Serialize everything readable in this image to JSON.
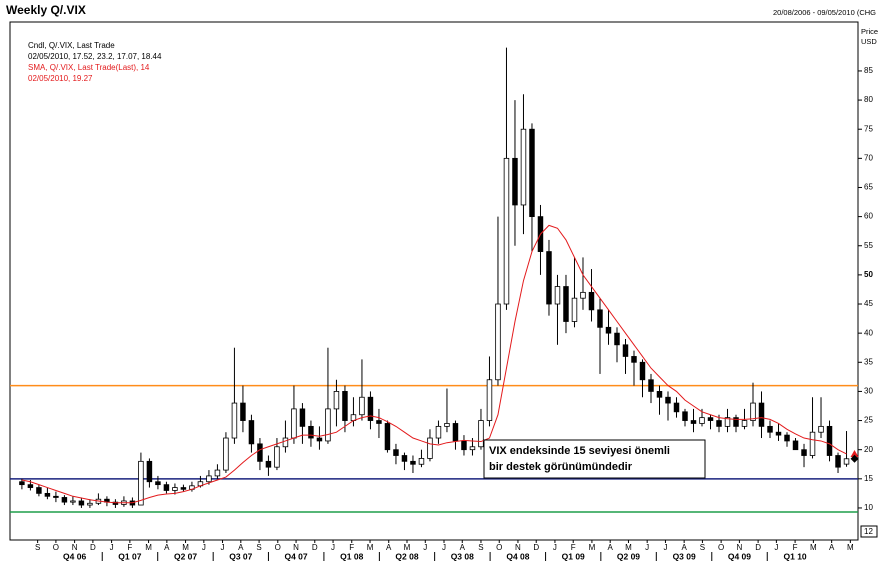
{
  "chart_data": {
    "type": "candlestick",
    "title": "Weekly Q/.VIX",
    "date_range": "20/08/2006 - 09/05/2010 (CHG",
    "y_axis_label": [
      "Price",
      "USD"
    ],
    "legend": [
      "Cndl, Q/.VIX, Last Trade",
      "02/05/2010, 17.52, 23.2, 17.07, 18.44",
      "SMA, Q/.VIX, Last Trade(Last),  14",
      "02/05/2010, 19.27"
    ],
    "annotation": [
      "VIX endeksinde 15 seviyesi önemli",
      "bir destek görünümündedir"
    ],
    "corner_label": "12",
    "ylim": [
      4.5,
      93.4
    ],
    "yticks": [
      10,
      15,
      20,
      25,
      30,
      35,
      40,
      45,
      50,
      55,
      60,
      65,
      70,
      75,
      80,
      85
    ],
    "bold_tick": 50,
    "xlim": [
      -2.8,
      196.7
    ],
    "xticks": [
      {
        "value": 3.7,
        "label": "S"
      },
      {
        "value": 8.0,
        "label": "O"
      },
      {
        "value": 12.4,
        "label": "N"
      },
      {
        "value": 16.7,
        "label": "D"
      },
      {
        "value": 21.1,
        "label": "J"
      },
      {
        "value": 25.4,
        "label": "F"
      },
      {
        "value": 29.8,
        "label": "M"
      },
      {
        "value": 34.1,
        "label": "A"
      },
      {
        "value": 38.5,
        "label": "M"
      },
      {
        "value": 42.8,
        "label": "J"
      },
      {
        "value": 47.2,
        "label": "J"
      },
      {
        "value": 51.5,
        "label": "A"
      },
      {
        "value": 55.8,
        "label": "S"
      },
      {
        "value": 60.2,
        "label": "O"
      },
      {
        "value": 64.5,
        "label": "N"
      },
      {
        "value": 68.9,
        "label": "D"
      },
      {
        "value": 73.2,
        "label": "J"
      },
      {
        "value": 77.6,
        "label": "F"
      },
      {
        "value": 81.9,
        "label": "M"
      },
      {
        "value": 86.3,
        "label": "A"
      },
      {
        "value": 90.6,
        "label": "M"
      },
      {
        "value": 94.9,
        "label": "J"
      },
      {
        "value": 99.3,
        "label": "J"
      },
      {
        "value": 103.6,
        "label": "A"
      },
      {
        "value": 108,
        "label": "S"
      },
      {
        "value": 112.3,
        "label": "O"
      },
      {
        "value": 116.7,
        "label": "N"
      },
      {
        "value": 121,
        "label": "D"
      },
      {
        "value": 125.4,
        "label": "J"
      },
      {
        "value": 129.7,
        "label": "F"
      },
      {
        "value": 134.1,
        "label": "M"
      },
      {
        "value": 138.4,
        "label": "A"
      },
      {
        "value": 142.7,
        "label": "M"
      },
      {
        "value": 147.1,
        "label": "J"
      },
      {
        "value": 151.4,
        "label": "J"
      },
      {
        "value": 155.8,
        "label": "A"
      },
      {
        "value": 160.1,
        "label": "S"
      },
      {
        "value": 164.5,
        "label": "O"
      },
      {
        "value": 168.8,
        "label": "N"
      },
      {
        "value": 173.2,
        "label": "D"
      },
      {
        "value": 177.5,
        "label": "J"
      },
      {
        "value": 181.9,
        "label": "F"
      },
      {
        "value": 186.2,
        "label": "M"
      },
      {
        "value": 190.5,
        "label": "A"
      },
      {
        "value": 194.9,
        "label": "M"
      }
    ],
    "quarter_ticks": [
      {
        "value": 12.4,
        "label": "Q4 06"
      },
      {
        "value": 25.4,
        "label": "Q1 07"
      },
      {
        "value": 38.5,
        "label": "Q2 07"
      },
      {
        "value": 51.5,
        "label": "Q3 07"
      },
      {
        "value": 64.5,
        "label": "Q4 07"
      },
      {
        "value": 77.6,
        "label": "Q1 08"
      },
      {
        "value": 90.6,
        "label": "Q2 08"
      },
      {
        "value": 103.6,
        "label": "Q3 08"
      },
      {
        "value": 116.7,
        "label": "Q4 08"
      },
      {
        "value": 129.7,
        "label": "Q1 09"
      },
      {
        "value": 142.7,
        "label": "Q2 09"
      },
      {
        "value": 155.8,
        "label": "Q3 09"
      },
      {
        "value": 168.8,
        "label": "Q4 09"
      },
      {
        "value": 181.9,
        "label": "Q1 10"
      }
    ],
    "x": [
      0,
      2,
      4,
      6,
      8,
      10,
      12,
      14,
      16,
      18,
      20,
      22,
      24,
      26,
      28,
      30,
      32,
      34,
      36,
      38,
      40,
      42,
      44,
      46,
      48,
      50,
      52,
      54,
      56,
      58,
      60,
      62,
      64,
      66,
      68,
      70,
      72,
      74,
      76,
      78,
      80,
      82,
      84,
      86,
      88,
      90,
      92,
      94,
      96,
      98,
      100,
      102,
      104,
      106,
      108,
      110,
      112,
      114,
      116,
      118,
      120,
      122,
      124,
      126,
      128,
      130,
      132,
      134,
      136,
      138,
      140,
      142,
      144,
      146,
      148,
      150,
      152,
      154,
      156,
      158,
      160,
      162,
      164,
      166,
      168,
      170,
      172,
      174,
      176,
      178,
      180,
      182,
      184,
      186,
      188,
      190,
      192,
      194
    ],
    "open": [
      14.5,
      14,
      13.5,
      12.5,
      12,
      11.8,
      11,
      11.2,
      10.5,
      10.8,
      11.5,
      11,
      10.6,
      11.2,
      10.5,
      18,
      14.5,
      14,
      13,
      13.5,
      13.2,
      13.8,
      14.5,
      15.5,
      16.5,
      22,
      28,
      25,
      21,
      18,
      17,
      20.5,
      22,
      27,
      24,
      22,
      21.5,
      27,
      30,
      25,
      26,
      29,
      25,
      24.5,
      20,
      19,
      18,
      17.5,
      18.5,
      22,
      24,
      24.5,
      21.5,
      20,
      20.5,
      25,
      32,
      45,
      70,
      62,
      75,
      60,
      54,
      45,
      48,
      42,
      46,
      47,
      44,
      41,
      40,
      38,
      36,
      35,
      32,
      30,
      29,
      28,
      26.5,
      25,
      24.5,
      25.5,
      25,
      24,
      25.5,
      24,
      25,
      28,
      24,
      23,
      22.5,
      21.5,
      20,
      19,
      23,
      24,
      19,
      17.52
    ],
    "high": [
      15,
      14.8,
      14,
      13.5,
      12.8,
      12.2,
      12,
      11.8,
      11.5,
      12.5,
      12,
      11.5,
      12,
      11.8,
      19.5,
      18.5,
      15.5,
      14.5,
      14.2,
      14,
      14.5,
      15.5,
      16.5,
      17.5,
      23,
      37.5,
      31,
      26,
      22,
      19,
      22,
      25,
      31,
      28,
      25,
      24,
      37.5,
      32,
      31,
      29,
      35.5,
      30,
      27,
      25,
      21,
      19.5,
      19,
      20,
      23.5,
      25,
      30.5,
      25,
      22.5,
      22,
      27,
      36,
      60,
      89,
      80,
      81,
      76,
      62,
      56,
      50,
      50,
      53,
      53,
      51,
      46,
      44,
      41,
      39,
      37,
      35.5,
      33,
      31,
      30,
      29,
      27,
      27,
      27,
      26,
      26,
      27,
      26,
      27,
      31.5,
      30,
      25,
      24.5,
      23,
      22,
      21,
      29,
      29,
      25,
      19.5,
      23.2
    ],
    "low": [
      13.2,
      13,
      12,
      11.5,
      11,
      10.5,
      10.5,
      10,
      10,
      10.5,
      10.3,
      10,
      10.2,
      10,
      10.5,
      13.5,
      13.2,
      12.5,
      12.3,
      12.8,
      12.8,
      13.5,
      14,
      15,
      16,
      21,
      23,
      19.5,
      16.5,
      15.5,
      16.5,
      19.5,
      21,
      21,
      20.5,
      20,
      21,
      24,
      23,
      24,
      25,
      23.5,
      22,
      19.5,
      17.5,
      16.5,
      16,
      17,
      18,
      21,
      23,
      20,
      19,
      19,
      20,
      24,
      31,
      44,
      55,
      57,
      54,
      50,
      43,
      38,
      40,
      41,
      44,
      42,
      33,
      38,
      35,
      33,
      31,
      29,
      28,
      26,
      25,
      25.5,
      24,
      23,
      24,
      23.5,
      23,
      23,
      23,
      23.5,
      24,
      22,
      22,
      21.5,
      20.5,
      20,
      17,
      18.5,
      22,
      18,
      16,
      17.07
    ],
    "close": [
      14,
      13.5,
      12.5,
      12,
      11.8,
      11,
      11.2,
      10.5,
      10.8,
      11.5,
      11,
      10.6,
      11.2,
      10.5,
      18,
      14.5,
      14,
      13,
      13.5,
      13.2,
      13.8,
      14.5,
      15.5,
      16.5,
      22,
      28,
      25,
      21,
      18,
      17,
      20.5,
      22,
      27,
      24,
      22,
      21.5,
      27,
      30,
      25,
      26,
      29,
      25,
      24.5,
      20,
      19,
      18,
      17.5,
      18.5,
      22,
      24,
      24.5,
      21.5,
      20,
      20.5,
      25,
      32,
      45,
      70,
      62,
      75,
      60,
      54,
      45,
      48,
      42,
      46,
      47,
      44,
      41,
      40,
      38,
      36,
      35,
      32,
      30,
      29,
      28,
      26.5,
      25,
      24.5,
      25.5,
      25,
      24,
      25.5,
      24,
      25,
      28,
      24,
      23,
      22.5,
      21.5,
      20,
      19,
      23,
      24,
      19,
      17,
      18.44
    ],
    "sma": {
      "color": "#e31a1c",
      "values": [
        14.8,
        14.5,
        14,
        13.5,
        13,
        12.5,
        12,
        11.7,
        11.4,
        11.2,
        11,
        10.9,
        10.9,
        10.9,
        11.3,
        11.8,
        12.2,
        12.4,
        12.5,
        12.8,
        13.2,
        13.8,
        14.3,
        14.8,
        15.3,
        16.5,
        17.8,
        19,
        20,
        20.5,
        21,
        21.5,
        22,
        22.5,
        22.5,
        22.3,
        22.6,
        23,
        24,
        25,
        25.5,
        25.8,
        25.5,
        24.8,
        24,
        23,
        22,
        21.5,
        21,
        20.8,
        21.2,
        21.4,
        21.6,
        21.5,
        21.4,
        22,
        26,
        34,
        42,
        49,
        54,
        57,
        58.5,
        58,
        56,
        53,
        50,
        48,
        46,
        44,
        42,
        40,
        38,
        36,
        34,
        32.5,
        31,
        30,
        28.5,
        27.5,
        26.5,
        26,
        25.5,
        25.3,
        25.2,
        25.2,
        25.3,
        25.5,
        25.2,
        24.5,
        23.5,
        22.7,
        22,
        21.7,
        21.5,
        21,
        20,
        19.27
      ]
    },
    "hlines": [
      {
        "value": 31,
        "color": "#ff8c1a"
      },
      {
        "value": 15,
        "color": "#1a237e"
      },
      {
        "value": 9.3,
        "color": "#1e9e4a"
      }
    ]
  }
}
